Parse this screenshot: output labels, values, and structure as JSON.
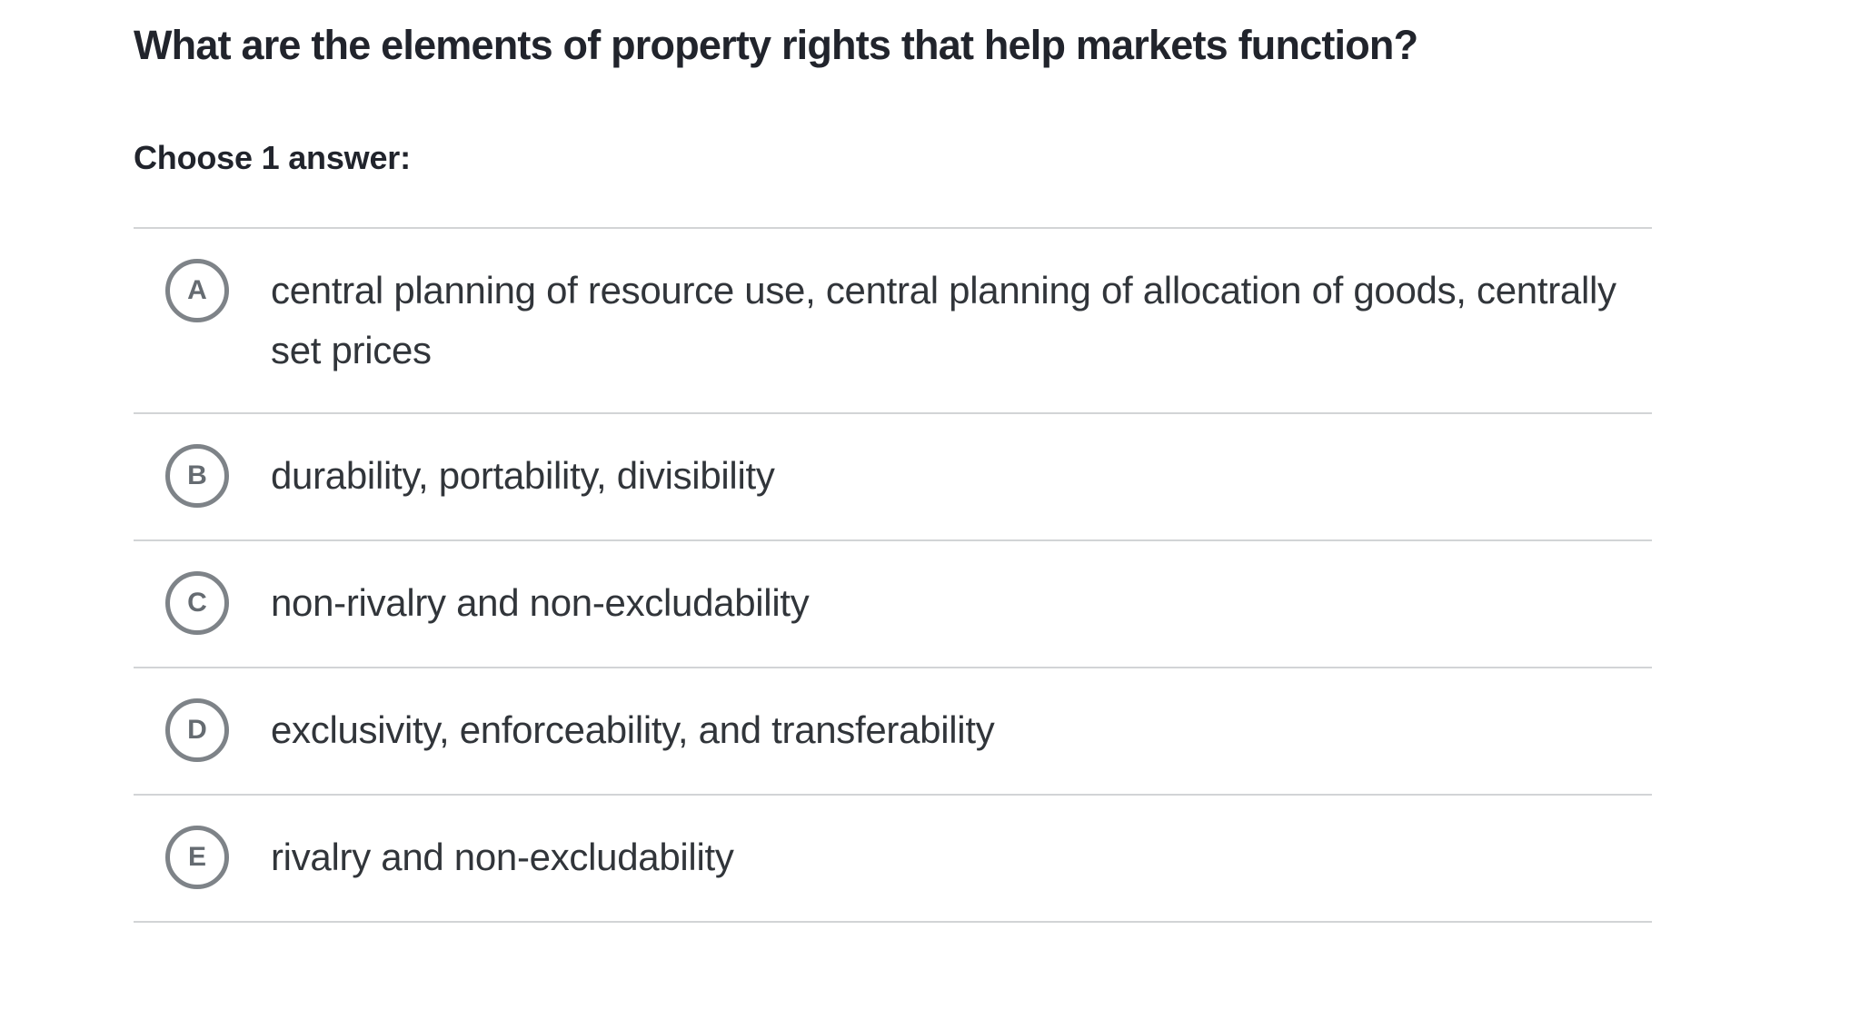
{
  "question": {
    "title": "What are the elements of property rights that help markets function?",
    "prompt": "Choose 1 answer:"
  },
  "choices": [
    {
      "letter": "A",
      "text": "central planning of resource use, central planning of allocation of goods, centrally set prices"
    },
    {
      "letter": "B",
      "text": "durability, portability, divisibility"
    },
    {
      "letter": "C",
      "text": "non-rivalry and non-excludability"
    },
    {
      "letter": "D",
      "text": "exclusivity, enforceability, and transferability"
    },
    {
      "letter": "E",
      "text": "rivalry and non-excludability"
    }
  ],
  "colors": {
    "heading": "#21242c",
    "choice_text": "#31353a",
    "radio_border": "#7e8388",
    "radio_letter": "#656b71",
    "divider": "#d2d4d6"
  }
}
